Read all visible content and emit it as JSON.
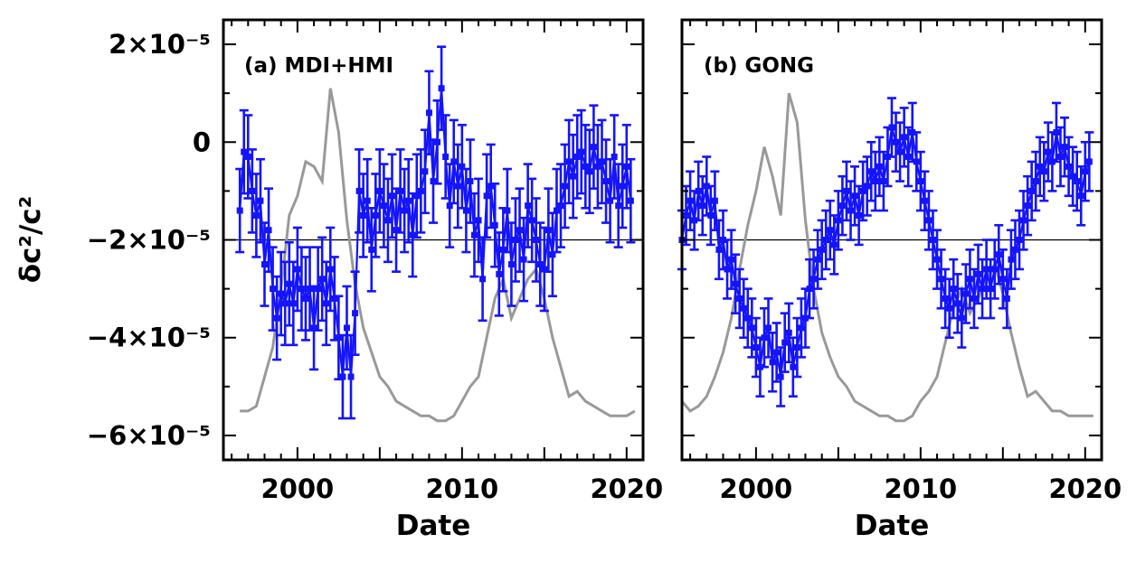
{
  "chart_data": [
    {
      "type": "scatter",
      "panel_label": "(a) MDI+HMI",
      "xlabel": "Date",
      "ylabel": "δc²/c²",
      "xlim": [
        1995.5,
        2021.0
      ],
      "ylim": [
        -6.5e-05,
        2.5e-05
      ],
      "x_ticks": [
        2000,
        2010,
        2020
      ],
      "y_ticks": [
        {
          "value": 2e-05,
          "label": "2×10⁻⁵"
        },
        {
          "value": 0,
          "label": "0"
        },
        {
          "value": -2e-05,
          "label": "−2×10⁻⁵"
        },
        {
          "value": -4e-05,
          "label": "−4×10⁻⁵"
        },
        {
          "value": -6e-05,
          "label": "−6×10⁻⁵"
        }
      ],
      "reference_line": -2e-05,
      "series": [
        {
          "color": "#1414ff",
          "x": [
            1996.5,
            1996.75,
            1997.0,
            1997.25,
            1997.5,
            1997.75,
            1998.0,
            1998.25,
            1998.5,
            1998.75,
            1999.0,
            1999.25,
            1999.5,
            1999.75,
            2000.0,
            2000.25,
            2000.5,
            2000.75,
            2001.0,
            2001.25,
            2001.5,
            2001.75,
            2002.0,
            2002.25,
            2002.5,
            2002.75,
            2003.0,
            2003.25,
            2003.5,
            2003.75,
            2004.0,
            2004.25,
            2004.5,
            2004.75,
            2005.0,
            2005.25,
            2005.5,
            2005.75,
            2006.0,
            2006.25,
            2006.5,
            2006.75,
            2007.0,
            2007.25,
            2007.5,
            2007.75,
            2008.0,
            2008.25,
            2008.5,
            2008.75,
            2009.0,
            2009.25,
            2009.5,
            2009.75,
            2010.0,
            2010.25,
            2010.5,
            2010.75,
            2011.0,
            2011.25,
            2011.5,
            2011.75,
            2012.0,
            2012.25,
            2012.5,
            2012.75,
            2013.0,
            2013.25,
            2013.5,
            2013.75,
            2014.0,
            2014.25,
            2014.5,
            2014.75,
            2015.0,
            2015.25,
            2015.5,
            2015.75,
            2016.0,
            2016.25,
            2016.5,
            2016.75,
            2017.0,
            2017.25,
            2017.5,
            2017.75,
            2018.0,
            2018.25,
            2018.5,
            2018.75,
            2019.0,
            2019.25,
            2019.5,
            2019.75,
            2020.0,
            2020.25
          ],
          "y": [
            -1.4e-05,
            -2e-06,
            -3e-06,
            -1e-05,
            -1.5e-05,
            -1.2e-05,
            -2.5e-05,
            -1.8e-05,
            -3e-05,
            -3.6e-05,
            -3.1e-05,
            -3.3e-05,
            -2.9e-05,
            -3.3e-05,
            -2.6e-05,
            -3e-05,
            -3.2e-05,
            -3e-05,
            -3.8e-05,
            -3e-05,
            -2.8e-05,
            -3.3e-05,
            -2.6e-05,
            -3.2e-05,
            -4e-05,
            -4.8e-05,
            -3.8e-05,
            -4.8e-05,
            -3.5e-05,
            -1e-05,
            -1.5e-05,
            -1.2e-05,
            -2.2e-05,
            -1.5e-05,
            -1e-05,
            -1.3e-05,
            -1.6e-05,
            -1.1e-05,
            -1.8e-05,
            -1e-05,
            -1.4e-05,
            -1.2e-05,
            -1.9e-05,
            -1.1e-05,
            -1e-05,
            -6e-06,
            6e-06,
            -8e-06,
            0.0,
            1.1e-05,
            -3e-06,
            -1.3e-05,
            -4e-06,
            -9e-06,
            -5e-06,
            -1.4e-05,
            -8e-06,
            -1.9e-05,
            -1.6e-05,
            -2.8e-05,
            -1.1e-05,
            -9e-06,
            -1.7e-05,
            -2.7e-05,
            -2.2e-05,
            -1.4e-05,
            -2.5e-05,
            -2e-05,
            -1.8e-05,
            -2.4e-05,
            -1.3e-05,
            -1.6e-05,
            -2e-05,
            -2.5e-05,
            -2.6e-05,
            -1.8e-05,
            -2.3e-05,
            -1.4e-05,
            -1.3e-05,
            -9e-06,
            -4e-06,
            -7e-06,
            -3e-06,
            -2e-06,
            -5e-06,
            -6e-06,
            -1e-06,
            -5e-06,
            -4e-06,
            -8e-06,
            -1.2e-05,
            -3e-06,
            -1.3e-05,
            -9e-06,
            -5e-06,
            -1.2e-05
          ],
          "yerr": 8.5e-06
        },
        {
          "color": "#999999",
          "x": [
            1996.5,
            1997.0,
            1997.5,
            1998.0,
            1998.5,
            1999.0,
            1999.5,
            2000.0,
            2000.5,
            2001.0,
            2001.5,
            2002.0,
            2002.5,
            2003.0,
            2003.5,
            2004.0,
            2004.5,
            2005.0,
            2005.5,
            2006.0,
            2006.5,
            2007.0,
            2007.5,
            2008.0,
            2008.5,
            2009.0,
            2009.5,
            2010.0,
            2010.5,
            2011.0,
            2011.5,
            2012.0,
            2012.5,
            2013.0,
            2013.5,
            2014.0,
            2014.5,
            2015.0,
            2015.5,
            2016.0,
            2016.5,
            2017.0,
            2017.5,
            2018.0,
            2018.5,
            2019.0,
            2019.5,
            2020.0,
            2020.5
          ],
          "y": [
            -5.5e-05,
            -5.5e-05,
            -5.4e-05,
            -4.8e-05,
            -4.2e-05,
            -3e-05,
            -1.5e-05,
            -1.1e-05,
            -4e-06,
            -5e-06,
            -8e-06,
            1.1e-05,
            2e-06,
            -1.6e-05,
            -2.9e-05,
            -3.8e-05,
            -4.3e-05,
            -4.8e-05,
            -5e-05,
            -5.3e-05,
            -5.4e-05,
            -5.5e-05,
            -5.6e-05,
            -5.6e-05,
            -5.7e-05,
            -5.7e-05,
            -5.6e-05,
            -5.3e-05,
            -5e-05,
            -4.8e-05,
            -4e-05,
            -3.2e-05,
            -2.8e-05,
            -3.6e-05,
            -3.2e-05,
            -2.8e-05,
            -2.6e-05,
            -3.2e-05,
            -4e-05,
            -4.6e-05,
            -5.2e-05,
            -5.1e-05,
            -5.3e-05,
            -5.4e-05,
            -5.5e-05,
            -5.6e-05,
            -5.6e-05,
            -5.6e-05,
            -5.5e-05
          ]
        }
      ]
    },
    {
      "type": "scatter",
      "panel_label": "(b) GONG",
      "xlabel": "Date",
      "ylabel": "",
      "xlim": [
        1995.5,
        2021.0
      ],
      "ylim": [
        -6.5e-05,
        2.5e-05
      ],
      "x_ticks": [
        2000,
        2010,
        2020
      ],
      "reference_line": -2e-05,
      "series": [
        {
          "color": "#1414ff",
          "x": [
            1995.5,
            1995.75,
            1996.0,
            1996.25,
            1996.5,
            1996.75,
            1997.0,
            1997.25,
            1997.5,
            1997.75,
            1998.0,
            1998.25,
            1998.5,
            1998.75,
            1999.0,
            1999.25,
            1999.5,
            1999.75,
            2000.0,
            2000.25,
            2000.5,
            2000.75,
            2001.0,
            2001.25,
            2001.5,
            2001.75,
            2002.0,
            2002.25,
            2002.5,
            2002.75,
            2003.0,
            2003.25,
            2003.5,
            2003.75,
            2004.0,
            2004.25,
            2004.5,
            2004.75,
            2005.0,
            2005.25,
            2005.5,
            2005.75,
            2006.0,
            2006.25,
            2006.5,
            2006.75,
            2007.0,
            2007.25,
            2007.5,
            2007.75,
            2008.0,
            2008.25,
            2008.5,
            2008.75,
            2009.0,
            2009.25,
            2009.5,
            2009.75,
            2010.0,
            2010.25,
            2010.5,
            2010.75,
            2011.0,
            2011.25,
            2011.5,
            2011.75,
            2012.0,
            2012.25,
            2012.5,
            2012.75,
            2013.0,
            2013.25,
            2013.5,
            2013.75,
            2014.0,
            2014.25,
            2014.5,
            2014.75,
            2015.0,
            2015.25,
            2015.5,
            2015.75,
            2016.0,
            2016.25,
            2016.5,
            2016.75,
            2017.0,
            2017.25,
            2017.5,
            2017.75,
            2018.0,
            2018.25,
            2018.5,
            2018.75,
            2019.0,
            2019.25,
            2019.5,
            2019.75,
            2020.0,
            2020.25
          ],
          "y": [
            -2e-05,
            -1.5e-05,
            -1.2e-05,
            -1.6e-05,
            -1e-05,
            -1.3e-05,
            -9e-06,
            -1.5e-05,
            -1.2e-05,
            -2.2e-05,
            -2e-05,
            -2.6e-05,
            -2.4e-05,
            -2.9e-05,
            -3.2e-05,
            -3.4e-05,
            -3.6e-05,
            -3.8e-05,
            -4.2e-05,
            -4.6e-05,
            -4e-05,
            -3.8e-05,
            -4.5e-05,
            -4.3e-05,
            -4.8e-05,
            -4.1e-05,
            -3.9e-05,
            -4.6e-05,
            -4.2e-05,
            -3.8e-05,
            -3.6e-05,
            -3e-05,
            -2.8e-05,
            -2.4e-05,
            -2.2e-05,
            -2e-05,
            -1.8e-05,
            -2.1e-05,
            -1.6e-05,
            -1.3e-05,
            -1e-05,
            -1.4e-05,
            -1.1e-05,
            -1.5e-05,
            -1e-05,
            -9e-06,
            -6e-06,
            -8e-06,
            -5e-06,
            -8e-06,
            -3e-06,
            3e-06,
            0.0,
            -2e-06,
            1e-06,
            -3e-06,
            2e-06,
            -4e-06,
            -8e-06,
            -1.2e-05,
            -1.6e-05,
            -2e-05,
            -2.4e-05,
            -2.8e-05,
            -3.2e-05,
            -3.4e-05,
            -3e-05,
            -3.3e-05,
            -3.6e-05,
            -3.1e-05,
            -2.8e-05,
            -3.2e-05,
            -2.7e-05,
            -3e-05,
            -2.6e-05,
            -3e-05,
            -2.6e-05,
            -2.3e-05,
            -2.8e-05,
            -3.2e-05,
            -2.4e-05,
            -2.2e-05,
            -2e-05,
            -1.6e-05,
            -1.3e-05,
            -1e-05,
            -8e-06,
            -5e-06,
            -6e-06,
            -2e-06,
            -4e-06,
            2e-06,
            -3e-06,
            -1e-06,
            -5e-06,
            -7e-06,
            -8e-06,
            -1.1e-05,
            -6e-06,
            -4e-06
          ],
          "yerr": 6e-06
        },
        {
          "color": "#999999",
          "x": [
            1995.5,
            1996.0,
            1996.5,
            1997.0,
            1997.5,
            1998.0,
            1998.5,
            1999.0,
            1999.5,
            2000.0,
            2000.5,
            2001.0,
            2001.5,
            2002.0,
            2002.5,
            2003.0,
            2003.5,
            2004.0,
            2004.5,
            2005.0,
            2005.5,
            2006.0,
            2006.5,
            2007.0,
            2007.5,
            2008.0,
            2008.5,
            2009.0,
            2009.5,
            2010.0,
            2010.5,
            2011.0,
            2011.5,
            2012.0,
            2012.5,
            2013.0,
            2013.5,
            2014.0,
            2014.5,
            2015.0,
            2015.5,
            2016.0,
            2016.5,
            2017.0,
            2017.5,
            2018.0,
            2018.5,
            2019.0,
            2019.5,
            2020.0,
            2020.5
          ],
          "y": [
            -5.3e-05,
            -5.5e-05,
            -5.4e-05,
            -5.2e-05,
            -4.8e-05,
            -4.3e-05,
            -3.6e-05,
            -2.6e-05,
            -1.7e-05,
            -1e-05,
            -1e-06,
            -7e-06,
            -1.5e-05,
            1e-05,
            4e-06,
            -1.6e-05,
            -3e-05,
            -3.9e-05,
            -4.4e-05,
            -4.8e-05,
            -5e-05,
            -5.3e-05,
            -5.4e-05,
            -5.5e-05,
            -5.6e-05,
            -5.6e-05,
            -5.7e-05,
            -5.7e-05,
            -5.6e-05,
            -5.3e-05,
            -5.1e-05,
            -4.8e-05,
            -4.1e-05,
            -3.4e-05,
            -3e-05,
            -3.5e-05,
            -3.2e-05,
            -2.8e-05,
            -2.5e-05,
            -3.1e-05,
            -3.9e-05,
            -4.6e-05,
            -5.2e-05,
            -5.1e-05,
            -5.3e-05,
            -5.5e-05,
            -5.5e-05,
            -5.6e-05,
            -5.6e-05,
            -5.6e-05,
            -5.6e-05
          ]
        }
      ]
    }
  ]
}
